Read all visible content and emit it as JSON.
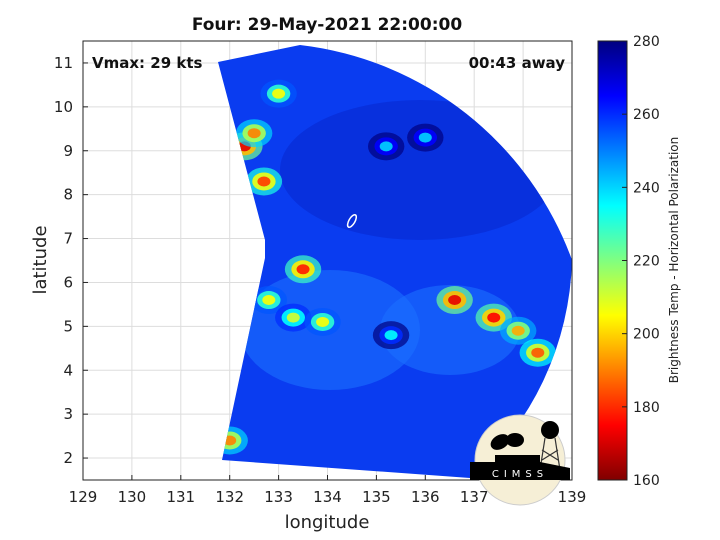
{
  "chart_data": {
    "type": "heatmap",
    "title": "Four: 29-May-2021 22:00:00",
    "xlabel": "longitude",
    "ylabel": "latitude",
    "xlim": [
      129,
      139
    ],
    "ylim": [
      1.5,
      11.5
    ],
    "xticks": [
      "129",
      "130",
      "131",
      "132",
      "133",
      "134",
      "135",
      "136",
      "137",
      "138",
      "139"
    ],
    "yticks": [
      "2",
      "3",
      "4",
      "5",
      "6",
      "7",
      "8",
      "9",
      "10",
      "11"
    ],
    "grid": true,
    "annotations": {
      "left": "Vmax: 29 kts",
      "right": "00:43 away"
    },
    "colorbar": {
      "label": "Brightness Temp - Horizontal Polarization",
      "range": [
        160,
        280
      ],
      "ticks": [
        "160",
        "180",
        "200",
        "220",
        "240",
        "260",
        "280"
      ],
      "colormap": "jet"
    },
    "background_value": 262,
    "features": [
      {
        "lon": 133.5,
        "lat": 6.3,
        "value": 178
      },
      {
        "lon": 132.8,
        "lat": 5.6,
        "value": 205
      },
      {
        "lon": 133.3,
        "lat": 5.2,
        "value": 210
      },
      {
        "lon": 133.9,
        "lat": 5.1,
        "value": 205
      },
      {
        "lon": 136.6,
        "lat": 5.6,
        "value": 172
      },
      {
        "lon": 137.4,
        "lat": 5.2,
        "value": 175
      },
      {
        "lon": 137.9,
        "lat": 4.9,
        "value": 195
      },
      {
        "lon": 138.3,
        "lat": 4.4,
        "value": 185
      },
      {
        "lon": 132.3,
        "lat": 9.1,
        "value": 172
      },
      {
        "lon": 132.7,
        "lat": 8.3,
        "value": 182
      },
      {
        "lon": 132.5,
        "lat": 9.4,
        "value": 190
      },
      {
        "lon": 133.0,
        "lat": 10.3,
        "value": 205
      },
      {
        "lon": 132.0,
        "lat": 2.4,
        "value": 190
      },
      {
        "lon": 135.2,
        "lat": 9.1,
        "value": 240
      },
      {
        "lon": 135.3,
        "lat": 4.8,
        "value": 235
      },
      {
        "lon": 136.0,
        "lat": 9.3,
        "value": 240
      }
    ],
    "center_marker": {
      "lon": 134.5,
      "lat": 7.4
    }
  },
  "logo": {
    "text": "CIMSS"
  },
  "colors": {
    "background_blue": "#0a3cf0",
    "cold_blue": "#0320c8"
  }
}
